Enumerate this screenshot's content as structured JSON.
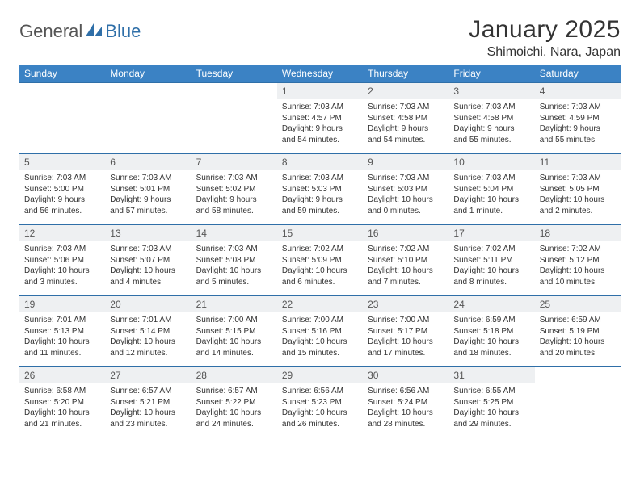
{
  "brand": {
    "word1": "General",
    "word2": "Blue"
  },
  "title": "January 2025",
  "location": "Shimoichi, Nara, Japan",
  "colors": {
    "header_bg": "#3b82c4",
    "header_text": "#ffffff",
    "daynum_bg": "#eef0f2",
    "rule": "#2f6fa8",
    "body_text": "#333333",
    "brand_blue": "#2f6fa8",
    "page_bg": "#ffffff"
  },
  "typography": {
    "title_fontsize": 30,
    "location_fontsize": 16,
    "dow_fontsize": 12,
    "daynum_fontsize": 12,
    "cell_fontsize": 10
  },
  "dow": [
    "Sunday",
    "Monday",
    "Tuesday",
    "Wednesday",
    "Thursday",
    "Friday",
    "Saturday"
  ],
  "weeks": [
    [
      {
        "n": "",
        "lines": [
          "",
          "",
          "",
          ""
        ]
      },
      {
        "n": "",
        "lines": [
          "",
          "",
          "",
          ""
        ]
      },
      {
        "n": "",
        "lines": [
          "",
          "",
          "",
          ""
        ]
      },
      {
        "n": "1",
        "lines": [
          "Sunrise: 7:03 AM",
          "Sunset: 4:57 PM",
          "Daylight: 9 hours",
          "and 54 minutes."
        ]
      },
      {
        "n": "2",
        "lines": [
          "Sunrise: 7:03 AM",
          "Sunset: 4:58 PM",
          "Daylight: 9 hours",
          "and 54 minutes."
        ]
      },
      {
        "n": "3",
        "lines": [
          "Sunrise: 7:03 AM",
          "Sunset: 4:58 PM",
          "Daylight: 9 hours",
          "and 55 minutes."
        ]
      },
      {
        "n": "4",
        "lines": [
          "Sunrise: 7:03 AM",
          "Sunset: 4:59 PM",
          "Daylight: 9 hours",
          "and 55 minutes."
        ]
      }
    ],
    [
      {
        "n": "5",
        "lines": [
          "Sunrise: 7:03 AM",
          "Sunset: 5:00 PM",
          "Daylight: 9 hours",
          "and 56 minutes."
        ]
      },
      {
        "n": "6",
        "lines": [
          "Sunrise: 7:03 AM",
          "Sunset: 5:01 PM",
          "Daylight: 9 hours",
          "and 57 minutes."
        ]
      },
      {
        "n": "7",
        "lines": [
          "Sunrise: 7:03 AM",
          "Sunset: 5:02 PM",
          "Daylight: 9 hours",
          "and 58 minutes."
        ]
      },
      {
        "n": "8",
        "lines": [
          "Sunrise: 7:03 AM",
          "Sunset: 5:03 PM",
          "Daylight: 9 hours",
          "and 59 minutes."
        ]
      },
      {
        "n": "9",
        "lines": [
          "Sunrise: 7:03 AM",
          "Sunset: 5:03 PM",
          "Daylight: 10 hours",
          "and 0 minutes."
        ]
      },
      {
        "n": "10",
        "lines": [
          "Sunrise: 7:03 AM",
          "Sunset: 5:04 PM",
          "Daylight: 10 hours",
          "and 1 minute."
        ]
      },
      {
        "n": "11",
        "lines": [
          "Sunrise: 7:03 AM",
          "Sunset: 5:05 PM",
          "Daylight: 10 hours",
          "and 2 minutes."
        ]
      }
    ],
    [
      {
        "n": "12",
        "lines": [
          "Sunrise: 7:03 AM",
          "Sunset: 5:06 PM",
          "Daylight: 10 hours",
          "and 3 minutes."
        ]
      },
      {
        "n": "13",
        "lines": [
          "Sunrise: 7:03 AM",
          "Sunset: 5:07 PM",
          "Daylight: 10 hours",
          "and 4 minutes."
        ]
      },
      {
        "n": "14",
        "lines": [
          "Sunrise: 7:03 AM",
          "Sunset: 5:08 PM",
          "Daylight: 10 hours",
          "and 5 minutes."
        ]
      },
      {
        "n": "15",
        "lines": [
          "Sunrise: 7:02 AM",
          "Sunset: 5:09 PM",
          "Daylight: 10 hours",
          "and 6 minutes."
        ]
      },
      {
        "n": "16",
        "lines": [
          "Sunrise: 7:02 AM",
          "Sunset: 5:10 PM",
          "Daylight: 10 hours",
          "and 7 minutes."
        ]
      },
      {
        "n": "17",
        "lines": [
          "Sunrise: 7:02 AM",
          "Sunset: 5:11 PM",
          "Daylight: 10 hours",
          "and 8 minutes."
        ]
      },
      {
        "n": "18",
        "lines": [
          "Sunrise: 7:02 AM",
          "Sunset: 5:12 PM",
          "Daylight: 10 hours",
          "and 10 minutes."
        ]
      }
    ],
    [
      {
        "n": "19",
        "lines": [
          "Sunrise: 7:01 AM",
          "Sunset: 5:13 PM",
          "Daylight: 10 hours",
          "and 11 minutes."
        ]
      },
      {
        "n": "20",
        "lines": [
          "Sunrise: 7:01 AM",
          "Sunset: 5:14 PM",
          "Daylight: 10 hours",
          "and 12 minutes."
        ]
      },
      {
        "n": "21",
        "lines": [
          "Sunrise: 7:00 AM",
          "Sunset: 5:15 PM",
          "Daylight: 10 hours",
          "and 14 minutes."
        ]
      },
      {
        "n": "22",
        "lines": [
          "Sunrise: 7:00 AM",
          "Sunset: 5:16 PM",
          "Daylight: 10 hours",
          "and 15 minutes."
        ]
      },
      {
        "n": "23",
        "lines": [
          "Sunrise: 7:00 AM",
          "Sunset: 5:17 PM",
          "Daylight: 10 hours",
          "and 17 minutes."
        ]
      },
      {
        "n": "24",
        "lines": [
          "Sunrise: 6:59 AM",
          "Sunset: 5:18 PM",
          "Daylight: 10 hours",
          "and 18 minutes."
        ]
      },
      {
        "n": "25",
        "lines": [
          "Sunrise: 6:59 AM",
          "Sunset: 5:19 PM",
          "Daylight: 10 hours",
          "and 20 minutes."
        ]
      }
    ],
    [
      {
        "n": "26",
        "lines": [
          "Sunrise: 6:58 AM",
          "Sunset: 5:20 PM",
          "Daylight: 10 hours",
          "and 21 minutes."
        ]
      },
      {
        "n": "27",
        "lines": [
          "Sunrise: 6:57 AM",
          "Sunset: 5:21 PM",
          "Daylight: 10 hours",
          "and 23 minutes."
        ]
      },
      {
        "n": "28",
        "lines": [
          "Sunrise: 6:57 AM",
          "Sunset: 5:22 PM",
          "Daylight: 10 hours",
          "and 24 minutes."
        ]
      },
      {
        "n": "29",
        "lines": [
          "Sunrise: 6:56 AM",
          "Sunset: 5:23 PM",
          "Daylight: 10 hours",
          "and 26 minutes."
        ]
      },
      {
        "n": "30",
        "lines": [
          "Sunrise: 6:56 AM",
          "Sunset: 5:24 PM",
          "Daylight: 10 hours",
          "and 28 minutes."
        ]
      },
      {
        "n": "31",
        "lines": [
          "Sunrise: 6:55 AM",
          "Sunset: 5:25 PM",
          "Daylight: 10 hours",
          "and 29 minutes."
        ]
      },
      {
        "n": "",
        "lines": [
          "",
          "",
          "",
          ""
        ]
      }
    ]
  ]
}
